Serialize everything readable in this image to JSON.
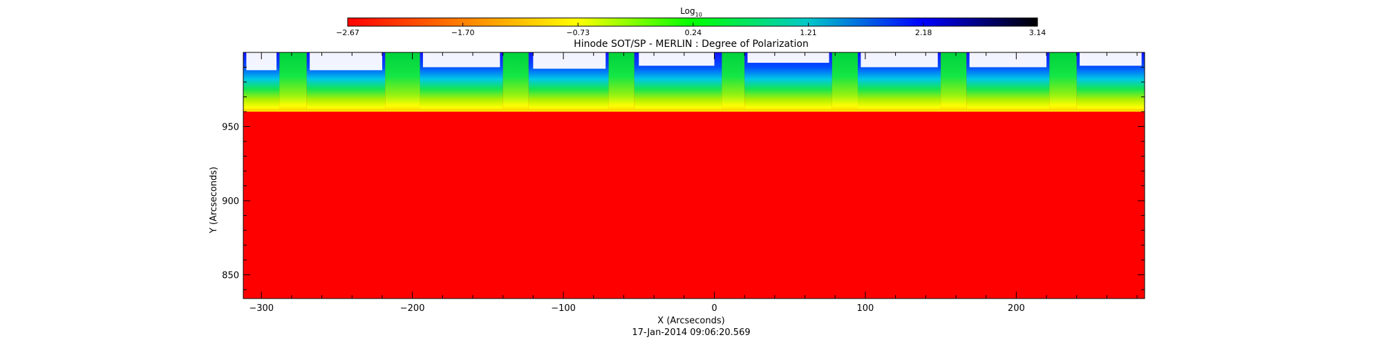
{
  "chart_data": {
    "type": "heatmap",
    "title": "Hinode SOT/SP - MERLIN : Degree of Polarization",
    "xlabel": "X (Arcseconds)",
    "ylabel": "Y (Arcseconds)",
    "timestamp": "17-Jan-2014 09:06:20.569",
    "xlim": [
      -312,
      285
    ],
    "ylim": [
      834,
      1000
    ],
    "x_ticks": [
      -300,
      -200,
      -100,
      0,
      100,
      200
    ],
    "y_ticks": [
      850,
      900,
      950
    ],
    "x_tick_labels": [
      "−300",
      "−200",
      "−100",
      "0",
      "100",
      "200"
    ],
    "y_tick_labels": [
      "850",
      "900",
      "950"
    ],
    "grid": false,
    "limb_y": 960,
    "colorbar": {
      "label_main": "Log",
      "label_sub": "10",
      "min": -2.67,
      "max": 3.14,
      "ticks": [
        -2.67,
        -1.7,
        -0.73,
        0.24,
        1.21,
        2.18,
        3.14
      ],
      "tick_labels": [
        "−2.67",
        "−1.70",
        "−0.73",
        "0.24",
        "1.21",
        "2.18",
        "3.14"
      ],
      "colors": [
        "#ff0000",
        "#ff8000",
        "#ffff00",
        "#00ff00",
        "#00c8c8",
        "#0000ff",
        "#000000"
      ]
    },
    "background_color": "#ff0000",
    "slit_scans": [
      {
        "x0": -312,
        "x1": -288,
        "off_limb": "blue"
      },
      {
        "x0": -288,
        "x1": -270,
        "off_limb": "green"
      },
      {
        "x0": -270,
        "x1": -218,
        "off_limb": "blue"
      },
      {
        "x0": -218,
        "x1": -195,
        "off_limb": "green"
      },
      {
        "x0": -195,
        "x1": -140,
        "off_limb": "blue"
      },
      {
        "x0": -140,
        "x1": -123,
        "off_limb": "green"
      },
      {
        "x0": -123,
        "x1": -70,
        "off_limb": "blue"
      },
      {
        "x0": -70,
        "x1": -53,
        "off_limb": "green"
      },
      {
        "x0": -53,
        "x1": 5,
        "off_limb": "blue"
      },
      {
        "x0": 5,
        "x1": 20,
        "off_limb": "green"
      },
      {
        "x0": 20,
        "x1": 78,
        "off_limb": "blue"
      },
      {
        "x0": 78,
        "x1": 95,
        "off_limb": "green"
      },
      {
        "x0": 95,
        "x1": 150,
        "off_limb": "blue"
      },
      {
        "x0": 150,
        "x1": 167,
        "off_limb": "green"
      },
      {
        "x0": 167,
        "x1": 222,
        "off_limb": "blue"
      },
      {
        "x0": 222,
        "x1": 240,
        "off_limb": "green"
      },
      {
        "x0": 240,
        "x1": 285,
        "off_limb": "blue"
      }
    ],
    "saturated_patches": [
      {
        "x0": -310,
        "x1": -290,
        "y0": 988,
        "y1": 1000
      },
      {
        "x0": -268,
        "x1": -220,
        "y0": 988,
        "y1": 1000
      },
      {
        "x0": -193,
        "x1": -142,
        "y0": 990,
        "y1": 1000
      },
      {
        "x0": -120,
        "x1": -72,
        "y0": 989,
        "y1": 1000
      },
      {
        "x0": -50,
        "x1": 0,
        "y0": 991,
        "y1": 1000
      },
      {
        "x0": 22,
        "x1": 76,
        "y0": 993,
        "y1": 1000
      },
      {
        "x0": 97,
        "x1": 148,
        "y0": 990,
        "y1": 1000
      },
      {
        "x0": 169,
        "x1": 220,
        "y0": 990,
        "y1": 1000
      },
      {
        "x0": 242,
        "x1": 283,
        "y0": 991,
        "y1": 1000
      }
    ]
  }
}
